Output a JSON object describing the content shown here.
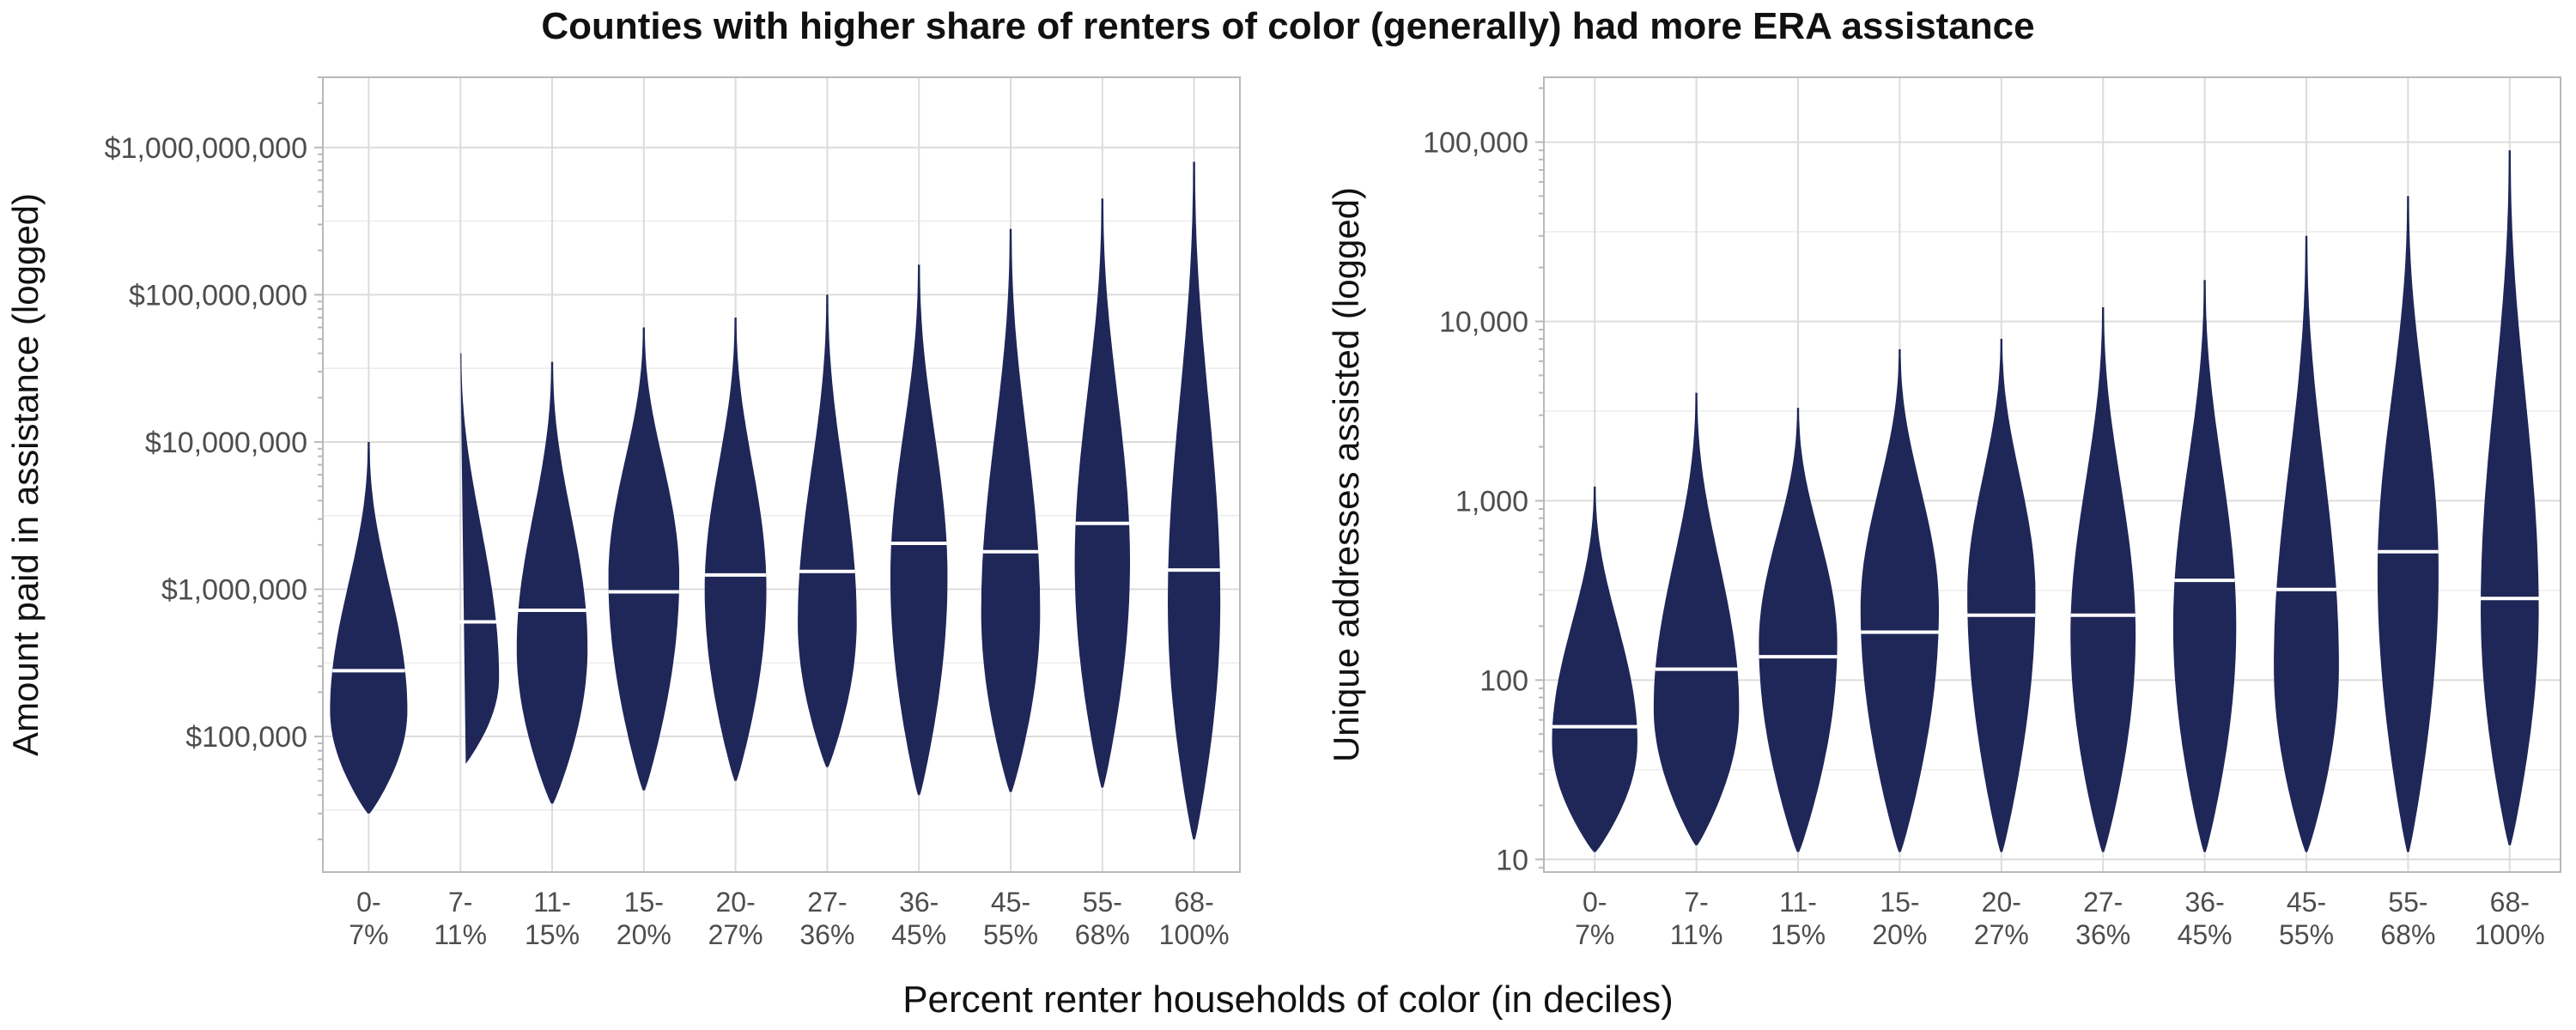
{
  "chart_data": {
    "title": "Counties with higher share of renters of color (generally) had more ERA assistance",
    "xlabel": "Percent renter households of color (in deciles)",
    "type": "violin",
    "grid": true,
    "color": "#1f2658",
    "median_color": "#ffffff",
    "categories": [
      "0-\n7%",
      "7-\n11%",
      "11-\n15%",
      "15-\n20%",
      "20-\n27%",
      "27-\n36%",
      "36-\n45%",
      "45-\n55%",
      "55-\n68%",
      "68-\n100%"
    ],
    "panels": [
      {
        "ylabel": "Amount paid in assistance (logged)",
        "yscale": "log",
        "ylim": [
          12000,
          3000000000
        ],
        "yticks": [
          100000,
          1000000,
          10000000,
          100000000,
          1000000000
        ],
        "ytick_labels": [
          "$100,000",
          "$1,000,000",
          "$10,000,000",
          "$100,000,000",
          "$1,000,000,000"
        ],
        "series": [
          {
            "min": 30000,
            "max": 10000000,
            "median": 280000,
            "mode": 150000,
            "width": 0.82
          },
          {
            "min": 60000,
            "max": 40000000,
            "median": 600000,
            "mode": 250000,
            "width": 0.82
          },
          {
            "min": 35000,
            "max": 35000000,
            "median": 720000,
            "mode": 400000,
            "width": 0.75
          },
          {
            "min": 43000,
            "max": 60000000,
            "median": 960000,
            "mode": 1200000,
            "width": 0.75
          },
          {
            "min": 50000,
            "max": 70000000,
            "median": 1250000,
            "mode": 1000000,
            "width": 0.65
          },
          {
            "min": 62000,
            "max": 100000000,
            "median": 1320000,
            "mode": 600000,
            "width": 0.62
          },
          {
            "min": 40000,
            "max": 160000000,
            "median": 2050000,
            "mode": 1200000,
            "width": 0.6
          },
          {
            "min": 42000,
            "max": 280000000,
            "median": 1800000,
            "mode": 700000,
            "width": 0.62
          },
          {
            "min": 45000,
            "max": 450000000,
            "median": 2800000,
            "mode": 1500000,
            "width": 0.58
          },
          {
            "min": 20000,
            "max": 800000000,
            "median": 1350000,
            "mode": 800000,
            "width": 0.55
          }
        ]
      },
      {
        "ylabel": "Unique addresses assisted (logged)",
        "yscale": "log",
        "ylim": [
          8.5,
          230000
        ],
        "yticks": [
          10,
          100,
          1000,
          10000,
          100000
        ],
        "ytick_labels": [
          "10",
          "100",
          "1,000",
          "10,000",
          "100,000"
        ],
        "series": [
          {
            "min": 11,
            "max": 1200,
            "median": 55,
            "mode": 45,
            "width": 0.82
          },
          {
            "min": 12,
            "max": 4000,
            "median": 115,
            "mode": 70,
            "width": 0.82
          },
          {
            "min": 11,
            "max": 3300,
            "median": 135,
            "mode": 160,
            "width": 0.75
          },
          {
            "min": 11,
            "max": 7000,
            "median": 185,
            "mode": 250,
            "width": 0.75
          },
          {
            "min": 11,
            "max": 8000,
            "median": 230,
            "mode": 300,
            "width": 0.65
          },
          {
            "min": 11,
            "max": 12000,
            "median": 230,
            "mode": 180,
            "width": 0.62
          },
          {
            "min": 11,
            "max": 17000,
            "median": 360,
            "mode": 200,
            "width": 0.6
          },
          {
            "min": 11,
            "max": 30000,
            "median": 320,
            "mode": 120,
            "width": 0.62
          },
          {
            "min": 11,
            "max": 50000,
            "median": 520,
            "mode": 400,
            "width": 0.58
          },
          {
            "min": 12,
            "max": 90000,
            "median": 285,
            "mode": 250,
            "width": 0.55
          }
        ]
      }
    ]
  }
}
